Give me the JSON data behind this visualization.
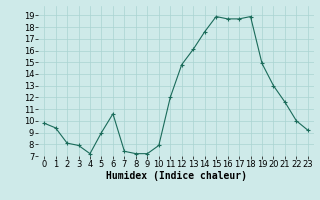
{
  "x": [
    0,
    1,
    2,
    3,
    4,
    5,
    6,
    7,
    8,
    9,
    10,
    11,
    12,
    13,
    14,
    15,
    16,
    17,
    18,
    19,
    20,
    21,
    22,
    23
  ],
  "y": [
    9.8,
    9.4,
    8.1,
    7.9,
    7.2,
    9.0,
    10.6,
    7.4,
    7.2,
    7.2,
    7.9,
    12.0,
    14.8,
    16.1,
    17.6,
    18.9,
    18.7,
    18.7,
    18.9,
    14.9,
    13.0,
    11.6,
    10.0,
    9.2
  ],
  "line_color": "#1a6b5a",
  "marker": "+",
  "markersize": 3,
  "linewidth": 0.8,
  "bg_color": "#ceeae9",
  "grid_color": "#aad4d2",
  "xlabel": "Humidex (Indice chaleur)",
  "xlim": [
    -0.5,
    23.5
  ],
  "ylim": [
    7,
    19.8
  ],
  "yticks": [
    7,
    8,
    9,
    10,
    11,
    12,
    13,
    14,
    15,
    16,
    17,
    18,
    19
  ],
  "xticks": [
    0,
    1,
    2,
    3,
    4,
    5,
    6,
    7,
    8,
    9,
    10,
    11,
    12,
    13,
    14,
    15,
    16,
    17,
    18,
    19,
    20,
    21,
    22,
    23
  ],
  "xlabel_fontsize": 7,
  "tick_fontsize": 6,
  "markeredgewidth": 0.8
}
